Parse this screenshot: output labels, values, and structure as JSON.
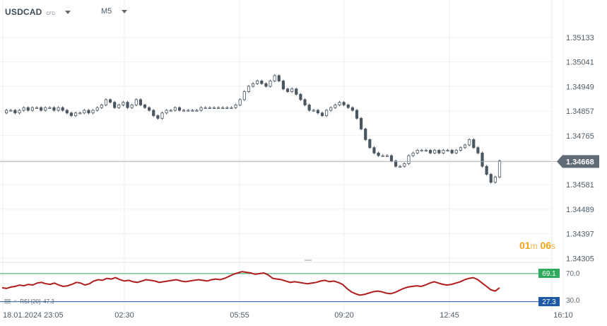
{
  "header": {
    "symbol": "USDCAD",
    "instrument_type": "CFD",
    "timeframe": "M5"
  },
  "timer": {
    "minutes": "01",
    "minutes_unit": "m",
    "seconds": "06",
    "seconds_unit": "s"
  },
  "indicator": {
    "label": "RSI [20]",
    "value": "47.3",
    "upper_level": "69.1",
    "lower_level": "27.3",
    "upper_axis": "70.0",
    "lower_axis": "30.0"
  },
  "colors": {
    "candle_body": "#4a5661",
    "price_line": "#a8b0b8",
    "price_tag": "#5f6b76",
    "rsi_line": "#b01c1c",
    "upper_level": "#2daa5c",
    "lower_level": "#1e5aa8",
    "grid": "#eef0f2",
    "timer": "#f2a31a"
  },
  "chart_data": {
    "type": "candlestick",
    "price_axis": [
      "1.35133",
      "1.35041",
      "1.34949",
      "1.34857",
      "1.34765",
      "1.34668",
      "1.34581",
      "1.34489",
      "1.34397",
      "1.34305"
    ],
    "current_price": "1.34668",
    "time_axis": [
      "18.01.2024  23:05",
      "02:30",
      "05:55",
      "09:20",
      "12:45",
      "16:10"
    ],
    "close_series": [
      1.3485,
      1.3486,
      1.3486,
      1.3485,
      1.3486,
      1.3487,
      1.3486,
      1.3487,
      1.3487,
      1.3486,
      1.3487,
      1.3487,
      1.3486,
      1.3487,
      1.3486,
      1.3485,
      1.3484,
      1.3485,
      1.3485,
      1.3486,
      1.3485,
      1.3486,
      1.3487,
      1.3488,
      1.349,
      1.3489,
      1.3487,
      1.3488,
      1.3489,
      1.3487,
      1.3488,
      1.349,
      1.3488,
      1.3487,
      1.3486,
      1.3484,
      1.3483,
      1.3485,
      1.3486,
      1.3486,
      1.3487,
      1.3486,
      1.3486,
      1.3486,
      1.3486,
      1.3486,
      1.3487,
      1.3487,
      1.3487,
      1.3487,
      1.3487,
      1.3487,
      1.3487,
      1.3487,
      1.3488,
      1.349,
      1.3493,
      1.3495,
      1.3496,
      1.3497,
      1.3496,
      1.3495,
      1.3497,
      1.3499,
      1.3497,
      1.3494,
      1.3493,
      1.3494,
      1.3492,
      1.349,
      1.3488,
      1.3486,
      1.3486,
      1.3485,
      1.3484,
      1.3486,
      1.3487,
      1.3488,
      1.3489,
      1.3488,
      1.3487,
      1.3486,
      1.3483,
      1.3479,
      1.3475,
      1.3472,
      1.347,
      1.3469,
      1.3469,
      1.3469,
      1.3467,
      1.3465,
      1.3465,
      1.3466,
      1.3469,
      1.347,
      1.3471,
      1.3471,
      1.3471,
      1.347,
      1.3471,
      1.347,
      1.3471,
      1.3471,
      1.347,
      1.3471,
      1.3472,
      1.3473,
      1.3475,
      1.3472,
      1.347,
      1.3465,
      1.3462,
      1.3459,
      1.3461,
      1.3467
    ],
    "rsi_series": [
      48,
      47,
      49,
      50,
      52,
      51,
      53,
      52,
      55,
      56,
      54,
      53,
      55,
      52,
      50,
      51,
      53,
      56,
      55,
      52,
      54,
      58,
      60,
      59,
      62,
      61,
      63,
      60,
      58,
      59,
      57,
      56,
      58,
      60,
      59,
      58,
      56,
      57,
      58,
      59,
      60,
      58,
      57,
      58,
      59,
      60,
      59,
      58,
      60,
      61,
      60,
      62,
      65,
      68,
      70,
      72,
      71,
      70,
      68,
      69,
      70,
      67,
      62,
      61,
      60,
      58,
      56,
      57,
      56,
      55,
      54,
      55,
      56,
      58,
      59,
      57,
      58,
      56,
      53,
      47,
      42,
      39,
      37,
      38,
      40,
      42,
      43,
      42,
      40,
      39,
      41,
      44,
      47,
      49,
      50,
      51,
      50,
      52,
      55,
      57,
      55,
      53,
      52,
      53,
      55,
      57,
      60,
      62,
      63,
      60,
      55,
      50,
      45,
      43,
      48
    ]
  }
}
